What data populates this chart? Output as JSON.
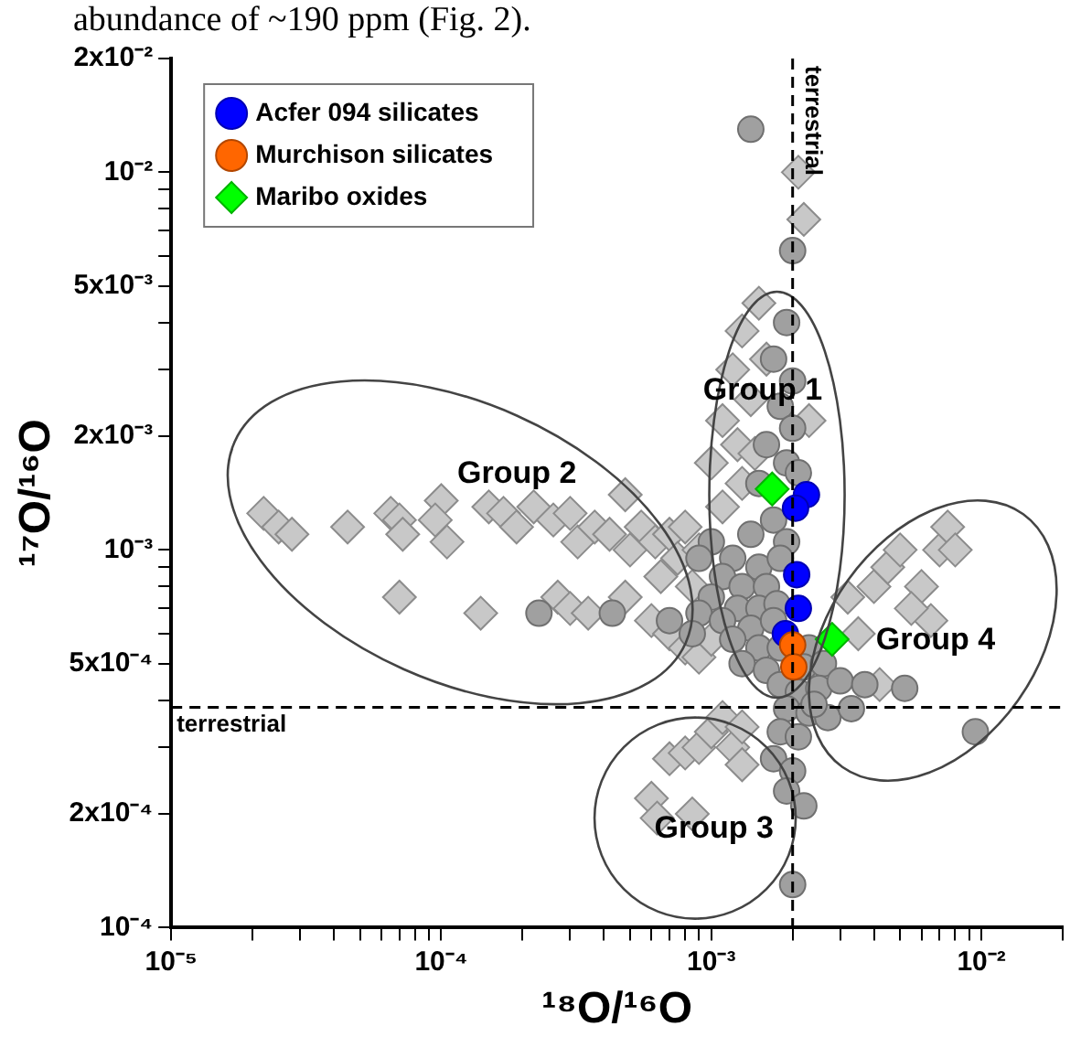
{
  "chart_data": {
    "type": "scatter",
    "xlabel": "¹⁸O/¹⁶O",
    "ylabel": "¹⁷O/¹⁶O",
    "log": "xy",
    "grid": false,
    "legend": "top left",
    "xlim": [
      1e-05,
      0.02
    ],
    "ylim": [
      0.0001,
      0.02
    ],
    "xticks": [
      {
        "value": 1e-05,
        "label": "10⁻⁵"
      },
      {
        "value": 2e-05,
        "label": null
      },
      {
        "value": 3e-05,
        "label": null
      },
      {
        "value": 4e-05,
        "label": null
      },
      {
        "value": 5e-05,
        "label": null
      },
      {
        "value": 6e-05,
        "label": null
      },
      {
        "value": 7e-05,
        "label": null
      },
      {
        "value": 8e-05,
        "label": null
      },
      {
        "value": 9e-05,
        "label": null
      },
      {
        "value": 0.0001,
        "label": "10⁻⁴"
      },
      {
        "value": 0.0002,
        "label": null
      },
      {
        "value": 0.0003,
        "label": null
      },
      {
        "value": 0.0004,
        "label": null
      },
      {
        "value": 0.0005,
        "label": null
      },
      {
        "value": 0.0006,
        "label": null
      },
      {
        "value": 0.0007,
        "label": null
      },
      {
        "value": 0.0008,
        "label": null
      },
      {
        "value": 0.0009,
        "label": null
      },
      {
        "value": 0.001,
        "label": "10⁻³"
      },
      {
        "value": 0.002,
        "label": null
      },
      {
        "value": 0.003,
        "label": null
      },
      {
        "value": 0.004,
        "label": null
      },
      {
        "value": 0.005,
        "label": null
      },
      {
        "value": 0.006,
        "label": null
      },
      {
        "value": 0.007,
        "label": null
      },
      {
        "value": 0.008,
        "label": null
      },
      {
        "value": 0.009,
        "label": null
      },
      {
        "value": 0.01,
        "label": "10⁻²"
      },
      {
        "value": 0.02,
        "label": null
      }
    ],
    "yticks": [
      {
        "value": 0.0001,
        "label": "10⁻⁴"
      },
      {
        "value": 0.0002,
        "label": "2x10⁻⁴"
      },
      {
        "value": 0.0003,
        "label": null
      },
      {
        "value": 0.0004,
        "label": null
      },
      {
        "value": 0.0005,
        "label": "5x10⁻⁴"
      },
      {
        "value": 0.0006,
        "label": null
      },
      {
        "value": 0.0007,
        "label": null
      },
      {
        "value": 0.0008,
        "label": null
      },
      {
        "value": 0.0009,
        "label": null
      },
      {
        "value": 0.001,
        "label": "10⁻³"
      },
      {
        "value": 0.002,
        "label": "2x10⁻³"
      },
      {
        "value": 0.003,
        "label": null
      },
      {
        "value": 0.004,
        "label": null
      },
      {
        "value": 0.005,
        "label": "5x10⁻³"
      },
      {
        "value": 0.006,
        "label": null
      },
      {
        "value": 0.007,
        "label": null
      },
      {
        "value": 0.008,
        "label": null
      },
      {
        "value": 0.009,
        "label": null
      },
      {
        "value": 0.01,
        "label": "10⁻²"
      },
      {
        "value": 0.02,
        "label": "2x10⁻²"
      }
    ],
    "ref_lines": [
      {
        "axis": "y",
        "value": 0.000383,
        "label": "terrestrial",
        "color": "#000000",
        "line_style": "dashed"
      },
      {
        "axis": "x",
        "value": 0.002,
        "label": "terrestrial",
        "color": "#000000",
        "line_style": "dashed"
      }
    ],
    "annotations": [
      "abundance of ~190 ppm (Fig. 2).",
      "Group 1",
      "Group 2",
      "Group 3",
      "Group 4"
    ],
    "series": [
      {
        "color": "#c8c8c8",
        "marker": "diamond",
        "x": [
          2.2e-05,
          2.5e-05,
          2.8e-05,
          4.5e-05,
          6.5e-05,
          7e-05,
          7.2e-05,
          0.0001,
          9.5e-05,
          0.000105,
          0.00015,
          0.00017,
          0.00019,
          0.00022,
          0.00026,
          0.0003,
          0.00032,
          0.00037,
          0.00042,
          0.00048,
          0.0005,
          0.00055,
          0.00062,
          0.0007,
          0.00075,
          0.0008,
          0.0009,
          7e-05,
          0.00014,
          0.00027,
          0.0003,
          0.00035,
          0.00048,
          0.0006,
          0.0007,
          0.0008,
          0.0009,
          0.001,
          0.00065,
          0.00085,
          0.0022,
          0.0021,
          0.0015,
          0.0013,
          0.0016,
          0.0012,
          0.0011,
          0.0014,
          0.00125,
          0.001,
          0.0013,
          0.00145,
          0.0023,
          0.0011,
          0.0035,
          0.004,
          0.0045,
          0.005,
          0.006,
          0.007,
          0.0075,
          0.008,
          0.0065,
          0.0055,
          0.0032,
          0.0042,
          0.0006,
          0.00063,
          0.0007,
          0.0008,
          0.0009,
          0.001,
          0.0011,
          0.0012,
          0.0013,
          0.00085,
          0.0013
        ],
        "values": [
          0.00125,
          0.00115,
          0.0011,
          0.00115,
          0.00125,
          0.0012,
          0.0011,
          0.00135,
          0.0012,
          0.00105,
          0.0013,
          0.00125,
          0.00115,
          0.0013,
          0.0012,
          0.00125,
          0.00105,
          0.00115,
          0.0011,
          0.0014,
          0.001,
          0.00115,
          0.00105,
          0.0011,
          0.00095,
          0.00115,
          0.001,
          0.00075,
          0.00068,
          0.00075,
          0.0007,
          0.00068,
          0.00075,
          0.00065,
          0.0006,
          0.00055,
          0.00052,
          0.00058,
          0.00085,
          0.0008,
          0.0075,
          0.01,
          0.0045,
          0.0038,
          0.0032,
          0.003,
          0.0022,
          0.0025,
          0.0019,
          0.0017,
          0.0015,
          0.0018,
          0.0022,
          0.0013,
          0.0006,
          0.0008,
          0.0009,
          0.001,
          0.0008,
          0.001,
          0.00115,
          0.001,
          0.00065,
          0.0007,
          0.00075,
          0.00044,
          0.00022,
          0.000195,
          0.00028,
          0.00029,
          0.0003,
          0.00033,
          0.00036,
          0.0003,
          0.00034,
          0.0002,
          0.00027
        ]
      },
      {
        "color": "#a0a0a0",
        "marker": "circle",
        "x": [
          0.0014,
          0.002,
          0.0019,
          0.0017,
          0.002,
          0.0018,
          0.002,
          0.0016,
          0.0019,
          0.0015,
          0.0021,
          0.0017,
          0.0014,
          0.0019,
          0.0012,
          0.0015,
          0.0018,
          0.0011,
          0.0013,
          0.0016,
          0.001,
          0.00125,
          0.0015,
          0.00175,
          0.0009,
          0.0011,
          0.0014,
          0.0017,
          0.00085,
          0.0012,
          0.0015,
          0.0018,
          0.0023,
          0.0013,
          0.0016,
          0.0022,
          0.0026,
          0.0018,
          0.0021,
          0.0025,
          0.003,
          0.0037,
          0.0052,
          0.0095,
          0.0019,
          0.0023,
          0.0027,
          0.0018,
          0.0021,
          0.0017,
          0.002,
          0.0019,
          0.0022,
          0.002,
          0.00023,
          0.00043,
          0.001,
          0.0009,
          0.0007,
          0.0024,
          0.0033
        ],
        "values": [
          0.013,
          0.0062,
          0.004,
          0.0032,
          0.0028,
          0.0024,
          0.0021,
          0.0019,
          0.0017,
          0.0015,
          0.0016,
          0.0012,
          0.0011,
          0.00105,
          0.00095,
          0.0009,
          0.00095,
          0.00085,
          0.0008,
          0.0008,
          0.00075,
          0.0007,
          0.0007,
          0.00072,
          0.00068,
          0.00065,
          0.00062,
          0.00065,
          0.0006,
          0.00058,
          0.00055,
          0.00055,
          0.00055,
          0.0005,
          0.00048,
          0.00049,
          0.0005,
          0.00044,
          0.00042,
          0.00043,
          0.00045,
          0.00044,
          0.00043,
          0.00033,
          0.00038,
          0.00037,
          0.00036,
          0.00033,
          0.00032,
          0.00028,
          0.00026,
          0.00023,
          0.00021,
          0.00013,
          0.00068,
          0.00068,
          0.00105,
          0.00095,
          0.00065,
          0.00039,
          0.00038
        ]
      },
      {
        "name": "Acfer 094 silicates",
        "color": "#0000ff",
        "marker": "circle",
        "x": [
          0.00225,
          0.00205,
          0.00207,
          0.0021,
          0.00188
        ],
        "values": [
          0.0014,
          0.00129,
          0.00086,
          0.0007,
          0.0006
        ]
      },
      {
        "name": "Murchison silicates",
        "color": "#ff6600",
        "marker": "circle",
        "x": [
          0.002,
          0.00202
        ],
        "values": [
          0.00056,
          0.00049
        ]
      },
      {
        "name": "Maribo oxides",
        "color": "#00ff00",
        "marker": "diamond",
        "x": [
          0.00168,
          0.0028
        ],
        "values": [
          0.00145,
          0.00058
        ]
      }
    ]
  }
}
